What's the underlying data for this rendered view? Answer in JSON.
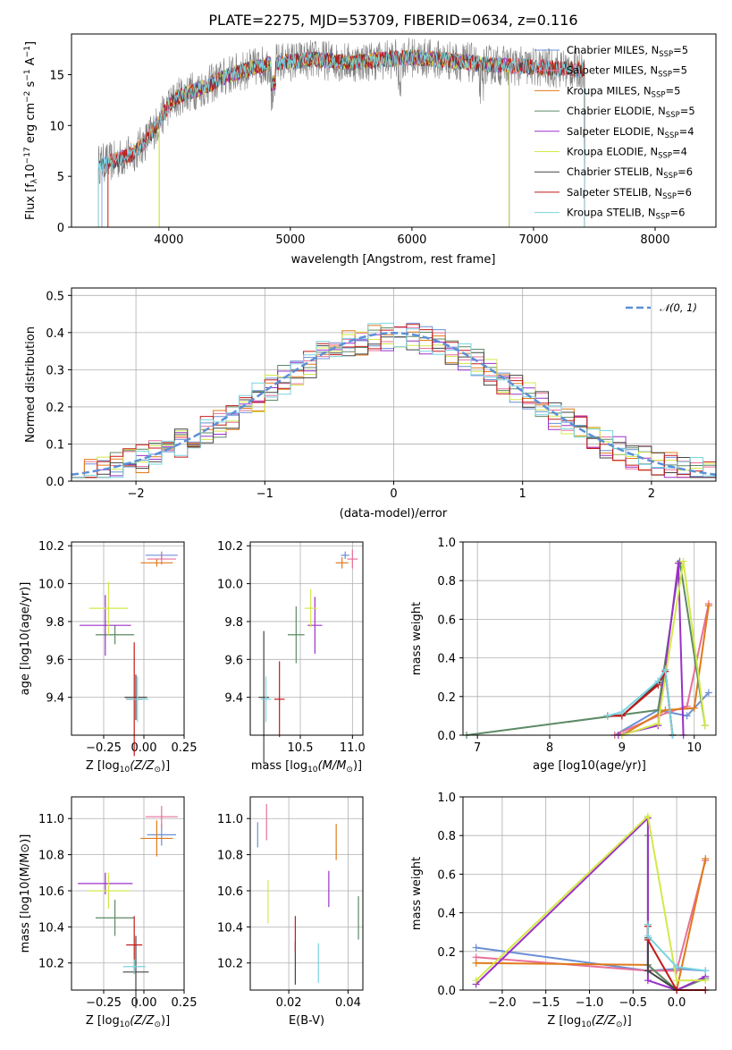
{
  "colors": {
    "chab_miles": "#6b8fd6",
    "salp_miles": "#e8709a",
    "krou_miles": "#e07b1a",
    "chab_elodie": "#5d8a66",
    "salp_elodie": "#9b30c8",
    "krou_elodie": "#d4e84a",
    "chab_stelib": "#444444",
    "salp_stelib": "#c41a1a",
    "krou_stelib": "#7ad4e0",
    "gauss": "#5b8fd6",
    "spec_gray": "#808080"
  },
  "chart_data": [
    {
      "id": "spectrum",
      "type": "line",
      "title": "PLATE=2275, MJD=53709, FIBERID=0634, z=0.116",
      "xlabel": "wavelength [Angstrom, rest frame]",
      "ylabel": "Flux [f",
      "ylabel_sub": "λ",
      "ylabel_rest": "10",
      "ylabel_sup": "−17",
      "ylabel_tail": " erg cm",
      "ylabel_sup2": "−2",
      "ylabel_tail2": " s",
      "ylabel_sup3": "−1",
      "ylabel_tail3": " A",
      "ylabel_sup4": "−1",
      "ylabel_end": "]",
      "xlim": [
        3200,
        8500
      ],
      "ylim": [
        0,
        19
      ],
      "xticks": [
        "4000",
        "5000",
        "6000",
        "7000",
        "8000"
      ],
      "yticks": [
        "0",
        "5",
        "10",
        "15"
      ],
      "legend_position": "top-right",
      "legend": [
        {
          "model": "Chabrier MILES, N",
          "sub": "SSP",
          "tail": "=5",
          "color": "chab_miles"
        },
        {
          "model": "Salpeter MILES, N",
          "sub": "SSP",
          "tail": "=5",
          "color": "salp_miles"
        },
        {
          "model": "Kroupa MILES, N",
          "sub": "SSP",
          "tail": "=5",
          "color": "krou_miles"
        },
        {
          "model": "Chabrier ELODIE, N",
          "sub": "SSP",
          "tail": "=5",
          "color": "chab_elodie"
        },
        {
          "model": "Salpeter ELODIE, N",
          "sub": "SSP",
          "tail": "=4",
          "color": "salp_elodie"
        },
        {
          "model": "Kroupa ELODIE, N",
          "sub": "SSP",
          "tail": "=4",
          "color": "krou_elodie"
        },
        {
          "model": "Chabrier STELIB, N",
          "sub": "SSP",
          "tail": "=6",
          "color": "chab_stelib"
        },
        {
          "model": "Salpeter STELIB, N",
          "sub": "SSP",
          "tail": "=6",
          "color": "salp_stelib"
        },
        {
          "model": "Kroupa STELIB, N",
          "sub": "SSP",
          "tail": "=6",
          "color": "krou_stelib"
        }
      ],
      "continuum": [
        [
          3420,
          6.2
        ],
        [
          3550,
          6.5
        ],
        [
          3700,
          7.2
        ],
        [
          3800,
          8.3
        ],
        [
          3900,
          10.0
        ],
        [
          4000,
          12.0
        ],
        [
          4100,
          13.0
        ],
        [
          4300,
          13.8
        ],
        [
          4500,
          15.0
        ],
        [
          4800,
          16.0
        ],
        [
          5000,
          16.3
        ],
        [
          5200,
          16.5
        ],
        [
          5500,
          16.2
        ],
        [
          5800,
          16.5
        ],
        [
          6000,
          16.7
        ],
        [
          6300,
          16.4
        ],
        [
          6600,
          16.0
        ],
        [
          6900,
          15.8
        ],
        [
          7200,
          15.6
        ],
        [
          7420,
          15.5
        ]
      ]
    },
    {
      "id": "residuals",
      "type": "bar",
      "xlabel": "(data-model)/error",
      "ylabel": "Normed distribution",
      "xlim": [
        -2.5,
        2.5
      ],
      "ylim": [
        0,
        0.52
      ],
      "xticks": [
        "−2",
        "−1",
        "0",
        "1",
        "2"
      ],
      "yticks": [
        "0.0",
        "0.1",
        "0.2",
        "0.3",
        "0.4",
        "0.5"
      ],
      "legend_position": "top-right",
      "gauss_label": "𝒩(0, 1)",
      "bin_width": 0.1
    },
    {
      "id": "age-vs-Z",
      "type": "scatter",
      "xlabel": "Z [log",
      "xlabel_sub": "10",
      "xlabel_rest": "(Z/Z",
      "xlabel_sub2": "⊙",
      "xlabel_end": ")]",
      "ylabel": "age  [log10(age/yr)]",
      "xlim": [
        -0.45,
        0.25
      ],
      "ylim": [
        9.2,
        10.22
      ],
      "xticks": [
        "−0.25",
        "0.00",
        "0.25"
      ],
      "yticks": [
        "9.4",
        "9.6",
        "9.8",
        "10.0",
        "10.2"
      ],
      "points": [
        {
          "x": 0.11,
          "y": 10.15,
          "xe": 0.1,
          "ye": 0.02,
          "color": "chab_miles"
        },
        {
          "x": 0.11,
          "y": 10.13,
          "xe": 0.09,
          "ye": 0.03,
          "color": "salp_miles"
        },
        {
          "x": 0.08,
          "y": 10.11,
          "xe": 0.1,
          "ye": 0.02,
          "color": "krou_miles"
        },
        {
          "x": -0.18,
          "y": 9.73,
          "xe": 0.12,
          "ye": 0.05,
          "color": "chab_elodie"
        },
        {
          "x": -0.24,
          "y": 9.78,
          "xe": 0.16,
          "ye": 0.16,
          "color": "salp_elodie"
        },
        {
          "x": -0.22,
          "y": 9.87,
          "xe": 0.12,
          "ye": 0.14,
          "color": "krou_elodie"
        },
        {
          "x": -0.05,
          "y": 9.4,
          "xe": 0.07,
          "ye": 0.12,
          "color": "chab_stelib"
        },
        {
          "x": -0.06,
          "y": 9.39,
          "xe": 0.05,
          "ye": 0.3,
          "color": "salp_stelib"
        },
        {
          "x": -0.04,
          "y": 9.39,
          "xe": 0.07,
          "ye": 0.12,
          "color": "krou_stelib"
        }
      ]
    },
    {
      "id": "age-vs-mass",
      "type": "scatter",
      "xlabel": "mass [log",
      "xlabel_sub": "10",
      "xlabel_rest": "(M/M",
      "xlabel_sub2": "⊙",
      "xlabel_end": ")]",
      "ylabel": "",
      "xlim": [
        10.02,
        11.1
      ],
      "ylim": [
        9.2,
        10.22
      ],
      "xticks": [
        "10.5",
        "11.0"
      ],
      "yticks": [
        "9.4",
        "9.6",
        "9.8",
        "10.0",
        "10.2"
      ],
      "points": [
        {
          "x": 10.93,
          "y": 10.15,
          "xe": 0.04,
          "ye": 0.02,
          "color": "chab_miles"
        },
        {
          "x": 11.0,
          "y": 10.13,
          "xe": 0.05,
          "ye": 0.05,
          "color": "salp_miles"
        },
        {
          "x": 10.9,
          "y": 10.11,
          "xe": 0.06,
          "ye": 0.03,
          "color": "krou_miles"
        },
        {
          "x": 10.46,
          "y": 9.73,
          "xe": 0.08,
          "ye": 0.15,
          "color": "chab_elodie"
        },
        {
          "x": 10.64,
          "y": 9.78,
          "xe": 0.07,
          "ye": 0.15,
          "color": "salp_elodie"
        },
        {
          "x": 10.6,
          "y": 9.87,
          "xe": 0.06,
          "ye": 0.1,
          "color": "krou_elodie"
        },
        {
          "x": 10.15,
          "y": 9.4,
          "xe": 0.05,
          "ye": 0.35,
          "color": "chab_stelib"
        },
        {
          "x": 10.3,
          "y": 9.39,
          "xe": 0.05,
          "ye": 0.2,
          "color": "salp_stelib"
        },
        {
          "x": 10.17,
          "y": 9.39,
          "xe": 0.05,
          "ye": 0.12,
          "color": "krou_stelib"
        }
      ]
    },
    {
      "id": "mass-weight-vs-age",
      "type": "line",
      "xlabel": "age  [log10(age/yr)]",
      "ylabel": "mass weight",
      "xlim": [
        6.8,
        10.3
      ],
      "ylim": [
        0,
        1.0
      ],
      "xticks": [
        "7",
        "8",
        "9",
        "10"
      ],
      "yticks": [
        "0.0",
        "0.2",
        "0.4",
        "0.6",
        "0.8",
        "1.0"
      ],
      "series": [
        {
          "color": "chab_miles",
          "points": [
            [
              8.9,
              0.0
            ],
            [
              9.5,
              0.13
            ],
            [
              9.9,
              0.1
            ],
            [
              10.2,
              0.22
            ]
          ]
        },
        {
          "color": "salp_miles",
          "points": [
            [
              8.9,
              0.0
            ],
            [
              9.5,
              0.1
            ],
            [
              9.9,
              0.15
            ],
            [
              10.2,
              0.68
            ]
          ]
        },
        {
          "color": "krou_miles",
          "points": [
            [
              9.0,
              0.0
            ],
            [
              9.6,
              0.13
            ],
            [
              10.0,
              0.14
            ],
            [
              10.2,
              0.67
            ]
          ]
        },
        {
          "color": "chab_elodie",
          "points": [
            [
              6.85,
              0.0
            ],
            [
              9.5,
              0.13
            ],
            [
              9.8,
              0.9
            ],
            [
              10.15,
              0.05
            ]
          ]
        },
        {
          "color": "salp_elodie",
          "points": [
            [
              8.95,
              0.0
            ],
            [
              9.5,
              0.05
            ],
            [
              9.78,
              0.89
            ],
            [
              9.85,
              0.0
            ]
          ]
        },
        {
          "color": "krou_elodie",
          "points": [
            [
              9.0,
              0.0
            ],
            [
              9.5,
              0.06
            ],
            [
              9.85,
              0.9
            ],
            [
              10.15,
              0.05
            ]
          ]
        },
        {
          "color": "chab_stelib",
          "points": [
            [
              8.8,
              0.1
            ],
            [
              9.0,
              0.1
            ],
            [
              9.5,
              0.27
            ],
            [
              9.6,
              0.34
            ],
            [
              9.7,
              0.0
            ]
          ]
        },
        {
          "color": "salp_stelib",
          "points": [
            [
              8.8,
              0.1
            ],
            [
              9.0,
              0.1
            ],
            [
              9.5,
              0.26
            ],
            [
              9.6,
              0.33
            ],
            [
              9.7,
              0.0
            ]
          ]
        },
        {
          "color": "krou_stelib",
          "points": [
            [
              8.8,
              0.1
            ],
            [
              9.0,
              0.12
            ],
            [
              9.5,
              0.28
            ],
            [
              9.6,
              0.34
            ],
            [
              9.7,
              0.0
            ]
          ]
        }
      ]
    },
    {
      "id": "mass-vs-Z",
      "type": "scatter",
      "xlabel": "Z [log",
      "xlabel_sub": "10",
      "xlabel_rest": "(Z/Z",
      "xlabel_sub2": "⊙",
      "xlabel_end": ")]",
      "ylabel": "mass [log10(M/M⊙)]",
      "xlim": [
        -0.45,
        0.25
      ],
      "ylim": [
        10.05,
        11.12
      ],
      "xticks": [
        "−0.25",
        "0.00",
        "0.25"
      ],
      "yticks": [
        "10.2",
        "10.4",
        "10.6",
        "10.8",
        "11.0"
      ],
      "points": [
        {
          "x": 0.11,
          "y": 10.91,
          "xe": 0.09,
          "ye": 0.06,
          "color": "chab_miles"
        },
        {
          "x": 0.11,
          "y": 11.01,
          "xe": 0.1,
          "ye": 0.06,
          "color": "salp_miles"
        },
        {
          "x": 0.08,
          "y": 10.89,
          "xe": 0.1,
          "ye": 0.1,
          "color": "krou_miles"
        },
        {
          "x": -0.18,
          "y": 10.45,
          "xe": 0.12,
          "ye": 0.1,
          "color": "chab_elodie"
        },
        {
          "x": -0.24,
          "y": 10.64,
          "xe": 0.17,
          "ye": 0.06,
          "color": "salp_elodie"
        },
        {
          "x": -0.22,
          "y": 10.6,
          "xe": 0.13,
          "ye": 0.1,
          "color": "krou_elodie"
        },
        {
          "x": -0.05,
          "y": 10.15,
          "xe": 0.08,
          "ye": 0.2,
          "color": "chab_stelib"
        },
        {
          "x": -0.06,
          "y": 10.3,
          "xe": 0.05,
          "ye": 0.16,
          "color": "salp_stelib"
        },
        {
          "x": -0.06,
          "y": 10.18,
          "xe": 0.07,
          "ye": 0.04,
          "color": "krou_stelib"
        }
      ]
    },
    {
      "id": "mass-vs-ebv",
      "type": "scatter",
      "xlabel": "E(B-V)",
      "ylabel": "",
      "xlim": [
        0.007,
        0.045
      ],
      "ylim": [
        10.05,
        11.12
      ],
      "xticks": [
        "0.02",
        "0.04"
      ],
      "yticks": [
        "10.2",
        "10.4",
        "10.6",
        "10.8",
        "11.0"
      ],
      "points": [
        {
          "x": 0.0095,
          "y": 10.91,
          "xe": 0,
          "ye": 0.07,
          "color": "chab_miles"
        },
        {
          "x": 0.0125,
          "y": 10.98,
          "xe": 0,
          "ye": 0.1,
          "color": "salp_miles"
        },
        {
          "x": 0.036,
          "y": 10.87,
          "xe": 0,
          "ye": 0.1,
          "color": "krou_miles"
        },
        {
          "x": 0.0435,
          "y": 10.45,
          "xe": 0,
          "ye": 0.12,
          "color": "chab_elodie"
        },
        {
          "x": 0.0335,
          "y": 10.61,
          "xe": 0,
          "ye": 0.1,
          "color": "salp_elodie"
        },
        {
          "x": 0.013,
          "y": 10.54,
          "xe": 0,
          "ye": 0.12,
          "color": "krou_elodie"
        },
        {
          "x": 0.0222,
          "y": 10.2,
          "xe": 0,
          "ye": 0.12,
          "color": "chab_stelib"
        },
        {
          "x": 0.0222,
          "y": 10.36,
          "xe": 0,
          "ye": 0.1,
          "color": "salp_stelib"
        },
        {
          "x": 0.03,
          "y": 10.2,
          "xe": 0,
          "ye": 0.11,
          "color": "krou_stelib"
        }
      ]
    },
    {
      "id": "mass-weight-vs-Z",
      "type": "line",
      "xlabel": "Z [log",
      "xlabel_sub": "10",
      "xlabel_rest": "(Z/Z",
      "xlabel_sub2": "⊙",
      "xlabel_end": ")]",
      "ylabel": "mass weight",
      "xlim": [
        -2.45,
        0.45
      ],
      "ylim": [
        0,
        1.0
      ],
      "xticks": [
        "−2.0",
        "−1.5",
        "−1.0",
        "−0.5",
        "0.0"
      ],
      "yticks": [
        "0.0",
        "0.2",
        "0.4",
        "0.6",
        "0.8",
        "1.0"
      ],
      "series": [
        {
          "color": "chab_miles",
          "points": [
            [
              -2.3,
              0.22
            ],
            [
              -0.33,
              0.1
            ],
            [
              0.0,
              0.11
            ],
            [
              0.33,
              0.1
            ]
          ]
        },
        {
          "color": "salp_miles",
          "points": [
            [
              -2.3,
              0.17
            ],
            [
              -0.33,
              0.1
            ],
            [
              0.0,
              0.1
            ],
            [
              0.33,
              0.67
            ]
          ]
        },
        {
          "color": "krou_miles",
          "points": [
            [
              -2.3,
              0.14
            ],
            [
              -0.33,
              0.13
            ],
            [
              -0.33,
              0.13
            ],
            [
              0.0,
              0.0
            ],
            [
              0.33,
              0.68
            ]
          ]
        },
        {
          "color": "chab_elodie",
          "points": [
            [
              -0.33,
              0.8
            ],
            [
              -0.33,
              0.13
            ],
            [
              0.0,
              0.0
            ],
            [
              0.33,
              0.06
            ]
          ]
        },
        {
          "color": "salp_elodie",
          "points": [
            [
              -2.3,
              0.03
            ],
            [
              -0.33,
              0.89
            ],
            [
              -0.33,
              0.05
            ],
            [
              0.0,
              0.0
            ],
            [
              0.33,
              0.07
            ]
          ]
        },
        {
          "color": "krou_elodie",
          "points": [
            [
              -2.3,
              0.05
            ],
            [
              -0.33,
              0.9
            ],
            [
              0.0,
              0.05
            ],
            [
              0.33,
              0.05
            ]
          ]
        },
        {
          "color": "chab_stelib",
          "points": [
            [
              -0.33,
              0.34
            ],
            [
              -0.33,
              0.27
            ],
            [
              -0.33,
              0.1
            ],
            [
              0.0,
              0.0
            ],
            [
              0.33,
              0.0
            ]
          ]
        },
        {
          "color": "salp_stelib",
          "points": [
            [
              -0.33,
              0.33
            ],
            [
              -0.33,
              0.26
            ],
            [
              0.0,
              0.0
            ],
            [
              0.33,
              0.0
            ]
          ]
        },
        {
          "color": "krou_stelib",
          "points": [
            [
              -0.33,
              0.34
            ],
            [
              -0.33,
              0.28
            ],
            [
              0.0,
              0.12
            ],
            [
              0.33,
              0.1
            ]
          ]
        }
      ]
    }
  ]
}
